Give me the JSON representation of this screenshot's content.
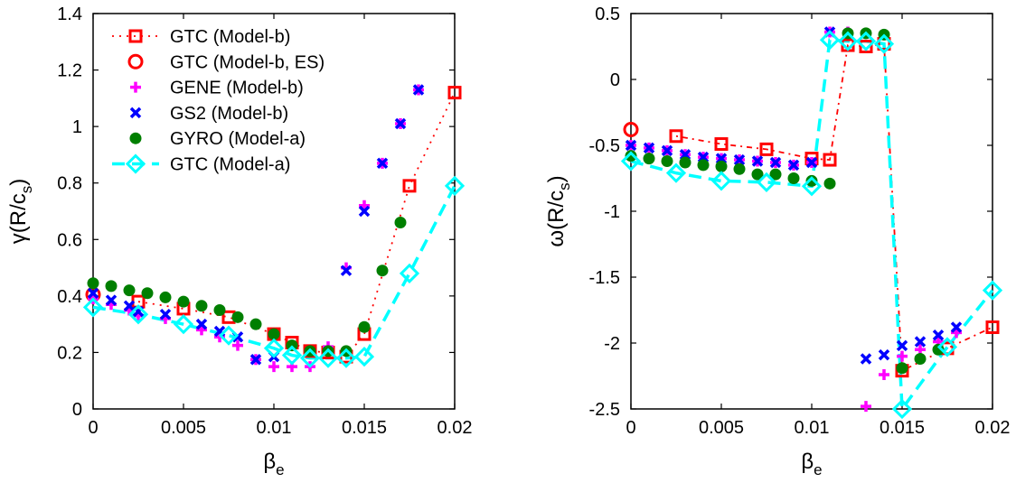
{
  "chart_data": [
    {
      "type": "line",
      "ylabel": "γ(R/c_s)",
      "xlabel": "β_e",
      "xlim": [
        0,
        0.02
      ],
      "ylim": [
        0,
        1.4
      ],
      "xticks": [
        "0",
        "0.005",
        "0.01",
        "0.015",
        "0.02"
      ],
      "yticks": [
        "0",
        "0.2",
        "0.4",
        "0.6",
        "0.8",
        "1",
        "1.2",
        "1.4"
      ],
      "legend": "top-left",
      "grid": false,
      "series": [
        {
          "name": "GTC (Model-b)",
          "color": "#ff0000",
          "marker": "square",
          "line": "dotted",
          "x": [
            0.0025,
            0.005,
            0.0075,
            0.01,
            0.011,
            0.012,
            0.013,
            0.014,
            0.015,
            0.0175,
            0.02
          ],
          "y": [
            0.38,
            0.355,
            0.325,
            0.265,
            0.235,
            0.205,
            0.2,
            0.185,
            0.265,
            0.79,
            1.12
          ]
        },
        {
          "name": "GTC (Model-b, ES)",
          "color": "#ff0000",
          "marker": "circle",
          "line": "none",
          "x": [
            0
          ],
          "y": [
            0.405
          ]
        },
        {
          "name": "GENE (Model-b)",
          "color": "#ff00ff",
          "marker": "plus",
          "line": "none",
          "x": [
            0,
            0.001,
            0.002,
            0.0025,
            0.004,
            0.006,
            0.007,
            0.008,
            0.009,
            0.01,
            0.011,
            0.012,
            0.013,
            0.014,
            0.015,
            0.016,
            0.017,
            0.018
          ],
          "y": [
            0.39,
            0.37,
            0.35,
            0.33,
            0.32,
            0.28,
            0.255,
            0.225,
            0.175,
            0.15,
            0.15,
            0.15,
            0.22,
            0.5,
            0.72,
            0.87,
            1.01,
            1.13
          ]
        },
        {
          "name": "GS2 (Model-b)",
          "color": "#0000ff",
          "marker": "x",
          "line": "none",
          "x": [
            0,
            0.001,
            0.002,
            0.0025,
            0.004,
            0.006,
            0.007,
            0.008,
            0.009,
            0.01,
            0.014,
            0.015,
            0.016,
            0.017,
            0.018
          ],
          "y": [
            0.41,
            0.385,
            0.365,
            0.345,
            0.335,
            0.3,
            0.275,
            0.255,
            0.175,
            0.185,
            0.49,
            0.7,
            0.87,
            1.01,
            1.13
          ]
        },
        {
          "name": "GYRO (Model-a)",
          "color": "#007f00",
          "marker": "dot",
          "line": "none",
          "x": [
            0,
            0.001,
            0.002,
            0.003,
            0.004,
            0.005,
            0.006,
            0.007,
            0.008,
            0.009,
            0.01,
            0.011,
            0.012,
            0.013,
            0.014,
            0.015,
            0.016,
            0.017
          ],
          "y": [
            0.445,
            0.435,
            0.42,
            0.41,
            0.395,
            0.38,
            0.365,
            0.35,
            0.325,
            0.3,
            0.265,
            0.225,
            0.205,
            0.205,
            0.205,
            0.29,
            0.49,
            0.66
          ]
        },
        {
          "name": "GTC  (Model-a)",
          "color": "#00ffff",
          "marker": "diamond",
          "line": "dashed",
          "x": [
            0,
            0.0025,
            0.005,
            0.0075,
            0.01,
            0.011,
            0.012,
            0.013,
            0.014,
            0.015,
            0.0175,
            0.02
          ],
          "y": [
            0.36,
            0.335,
            0.3,
            0.26,
            0.215,
            0.19,
            0.18,
            0.18,
            0.18,
            0.185,
            0.48,
            0.79
          ]
        }
      ]
    },
    {
      "type": "line",
      "ylabel": "ω(R/c_s)",
      "xlabel": "β_e",
      "xlim": [
        0,
        0.02
      ],
      "ylim": [
        -2.5,
        0.5
      ],
      "xticks": [
        "0",
        "0.005",
        "0.01",
        "0.015",
        "0.02"
      ],
      "yticks": [
        "0.5",
        "0",
        "-0.5",
        "-1",
        "-1.5",
        "-2",
        "-2.5"
      ],
      "grid": false,
      "series": [
        {
          "name": "GTC (Model-b)",
          "color": "#ff0000",
          "marker": "square",
          "line": "dashdot",
          "x": [
            0.0025,
            0.005,
            0.0075,
            0.01,
            0.011,
            0.012,
            0.013,
            0.014,
            0.015,
            0.0175,
            0.02
          ],
          "y": [
            -0.43,
            -0.49,
            -0.53,
            -0.6,
            -0.61,
            0.26,
            0.25,
            0.27,
            -2.21,
            -2.04,
            -1.88
          ]
        },
        {
          "name": "GTC (Model-b, ES)",
          "color": "#ff0000",
          "marker": "circle",
          "line": "none",
          "x": [
            0
          ],
          "y": [
            -0.38
          ]
        },
        {
          "name": "GENE (Model-b)",
          "color": "#ff00ff",
          "marker": "plus",
          "line": "none",
          "x": [
            0,
            0.001,
            0.002,
            0.003,
            0.004,
            0.005,
            0.006,
            0.007,
            0.008,
            0.009,
            0.01,
            0.011,
            0.012,
            0.013,
            0.013,
            0.014,
            0.015,
            0.016,
            0.017,
            0.018
          ],
          "y": [
            -0.5,
            -0.52,
            -0.54,
            -0.57,
            -0.59,
            -0.6,
            -0.61,
            -0.62,
            -0.63,
            -0.65,
            -0.63,
            0.36,
            0.36,
            0.35,
            -2.48,
            -2.24,
            -2.1,
            -2.05,
            -1.99,
            -1.92
          ]
        },
        {
          "name": "GS2 (Model-b)",
          "color": "#0000ff",
          "marker": "x",
          "line": "none",
          "x": [
            0,
            0.001,
            0.002,
            0.003,
            0.004,
            0.005,
            0.006,
            0.007,
            0.008,
            0.009,
            0.01,
            0.011,
            0.013,
            0.014,
            0.015,
            0.016,
            0.017,
            0.018
          ],
          "y": [
            -0.5,
            -0.52,
            -0.54,
            -0.57,
            -0.59,
            -0.6,
            -0.61,
            -0.62,
            -0.63,
            -0.65,
            -0.63,
            0.36,
            -2.12,
            -2.09,
            -2.02,
            -1.99,
            -1.94,
            -1.88
          ]
        },
        {
          "name": "GYRO (Model-a)",
          "color": "#007f00",
          "marker": "dot",
          "line": "none",
          "x": [
            0,
            0.001,
            0.002,
            0.003,
            0.004,
            0.005,
            0.006,
            0.007,
            0.008,
            0.009,
            0.01,
            0.011,
            0.012,
            0.013,
            0.014,
            0.015,
            0.016,
            0.017
          ],
          "y": [
            -0.58,
            -0.6,
            -0.62,
            -0.63,
            -0.65,
            -0.66,
            -0.68,
            -0.72,
            -0.72,
            -0.75,
            -0.77,
            -0.79,
            0.35,
            0.35,
            0.34,
            -2.19,
            -2.12,
            -2.05
          ]
        },
        {
          "name": "GTC  (Model-a)",
          "color": "#00ffff",
          "marker": "diamond",
          "line": "dashed",
          "x": [
            0,
            0.0025,
            0.005,
            0.0075,
            0.01,
            0.011,
            0.012,
            0.013,
            0.014,
            0.015,
            0.0175,
            0.02
          ],
          "y": [
            -0.62,
            -0.71,
            -0.77,
            -0.78,
            -0.81,
            0.3,
            0.29,
            0.29,
            0.27,
            -2.5,
            -2.03,
            -1.6
          ]
        }
      ]
    }
  ]
}
